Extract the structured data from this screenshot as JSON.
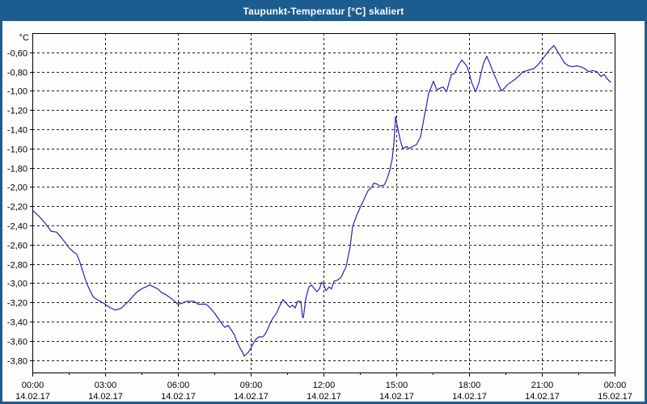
{
  "window": {
    "title": "Taupunkt-Temperatur [°C] skaliert"
  },
  "colors": {
    "titlebar": "#1d5c8f",
    "frame_border": "#1d5c8f",
    "background": "#fdfefb",
    "grid": "#1c1c1c",
    "axis": "#000000",
    "line": "#2323c4",
    "label_text": "#000000",
    "title_text": "#ffffff"
  },
  "chart_data": {
    "type": "line",
    "title": "Taupunkt-Temperatur [°C] skaliert",
    "ylabel": "°C",
    "xlabel": "",
    "grid": "dashed",
    "legend": "none",
    "ylim": [
      -3.93,
      -0.4
    ],
    "xlim_hours": [
      0,
      24
    ],
    "minor_tick_every_hours": 1.5,
    "y_ticks": [
      -0.6,
      -0.8,
      -1.0,
      -1.2,
      -1.4,
      -1.6,
      -1.8,
      -2.0,
      -2.2,
      -2.4,
      -2.6,
      -2.8,
      -3.0,
      -3.2,
      -3.4,
      -3.6,
      -3.8
    ],
    "y_tick_labels": [
      "-0,60",
      "-0,80",
      "-1,00",
      "-1,20",
      "-1,40",
      "-1,60",
      "-1,80",
      "-2,00",
      "-2,20",
      "-2,40",
      "-2,60",
      "-2,80",
      "-3,00",
      "-3,20",
      "-3,40",
      "-3,60",
      "-3,80"
    ],
    "x_ticks": [
      {
        "hour": 0,
        "time": "00:00",
        "date": "14.02.17"
      },
      {
        "hour": 3,
        "time": "03:00",
        "date": "14.02.17"
      },
      {
        "hour": 6,
        "time": "06:00",
        "date": "14.02.17"
      },
      {
        "hour": 9,
        "time": "09:00",
        "date": "14.02.17"
      },
      {
        "hour": 12,
        "time": "12:00",
        "date": "14.02.17"
      },
      {
        "hour": 15,
        "time": "15:00",
        "date": "14.02.17"
      },
      {
        "hour": 18,
        "time": "18:00",
        "date": "14.02.17"
      },
      {
        "hour": 21,
        "time": "21:00",
        "date": "14.02.17"
      },
      {
        "hour": 24,
        "time": "00:00",
        "date": "15.02.17"
      }
    ],
    "series": [
      {
        "name": "Taupunkt-Temperatur",
        "points": [
          [
            0.0,
            -2.24
          ],
          [
            0.17,
            -2.28
          ],
          [
            0.33,
            -2.32
          ],
          [
            0.5,
            -2.37
          ],
          [
            0.6,
            -2.4
          ],
          [
            0.77,
            -2.46
          ],
          [
            1.0,
            -2.47
          ],
          [
            1.17,
            -2.52
          ],
          [
            1.33,
            -2.57
          ],
          [
            1.5,
            -2.63
          ],
          [
            1.67,
            -2.67
          ],
          [
            1.83,
            -2.7
          ],
          [
            1.93,
            -2.76
          ],
          [
            2.07,
            -2.87
          ],
          [
            2.17,
            -2.95
          ],
          [
            2.27,
            -3.02
          ],
          [
            2.4,
            -3.09
          ],
          [
            2.5,
            -3.14
          ],
          [
            2.6,
            -3.16
          ],
          [
            2.73,
            -3.18
          ],
          [
            2.87,
            -3.2
          ],
          [
            3.0,
            -3.22
          ],
          [
            3.17,
            -3.25
          ],
          [
            3.33,
            -3.27
          ],
          [
            3.4,
            -3.28
          ],
          [
            3.57,
            -3.27
          ],
          [
            3.67,
            -3.26
          ],
          [
            3.83,
            -3.22
          ],
          [
            4.0,
            -3.18
          ],
          [
            4.17,
            -3.13
          ],
          [
            4.33,
            -3.09
          ],
          [
            4.5,
            -3.06
          ],
          [
            4.67,
            -3.04
          ],
          [
            4.83,
            -3.02
          ],
          [
            5.0,
            -3.04
          ],
          [
            5.17,
            -3.06
          ],
          [
            5.33,
            -3.1
          ],
          [
            5.5,
            -3.12
          ],
          [
            5.67,
            -3.15
          ],
          [
            5.83,
            -3.18
          ],
          [
            6.0,
            -3.22
          ],
          [
            6.17,
            -3.21
          ],
          [
            6.33,
            -3.19
          ],
          [
            6.67,
            -3.19
          ],
          [
            6.83,
            -3.22
          ],
          [
            7.17,
            -3.22
          ],
          [
            7.33,
            -3.26
          ],
          [
            7.5,
            -3.31
          ],
          [
            7.67,
            -3.37
          ],
          [
            7.83,
            -3.43
          ],
          [
            7.93,
            -3.46
          ],
          [
            8.07,
            -3.44
          ],
          [
            8.23,
            -3.5
          ],
          [
            8.33,
            -3.54
          ],
          [
            8.43,
            -3.61
          ],
          [
            8.57,
            -3.68
          ],
          [
            8.67,
            -3.72
          ],
          [
            8.73,
            -3.76
          ],
          [
            8.9,
            -3.72
          ],
          [
            9.0,
            -3.68
          ],
          [
            9.1,
            -3.63
          ],
          [
            9.23,
            -3.58
          ],
          [
            9.33,
            -3.56
          ],
          [
            9.5,
            -3.56
          ],
          [
            9.6,
            -3.53
          ],
          [
            9.73,
            -3.46
          ],
          [
            9.83,
            -3.4
          ],
          [
            9.93,
            -3.36
          ],
          [
            10.07,
            -3.31
          ],
          [
            10.17,
            -3.25
          ],
          [
            10.33,
            -3.17
          ],
          [
            10.5,
            -3.22
          ],
          [
            10.6,
            -3.25
          ],
          [
            10.73,
            -3.23
          ],
          [
            10.83,
            -3.26
          ],
          [
            10.93,
            -3.19
          ],
          [
            11.07,
            -3.19
          ],
          [
            11.13,
            -3.35
          ],
          [
            11.17,
            -3.36
          ],
          [
            11.27,
            -3.16
          ],
          [
            11.4,
            -3.04
          ],
          [
            11.5,
            -3.02
          ],
          [
            11.6,
            -3.05
          ],
          [
            11.73,
            -3.09
          ],
          [
            11.83,
            -3.06
          ],
          [
            11.93,
            -2.99
          ],
          [
            12.0,
            -3.01
          ],
          [
            12.1,
            -3.08
          ],
          [
            12.23,
            -3.04
          ],
          [
            12.33,
            -3.06
          ],
          [
            12.43,
            -2.98
          ],
          [
            12.57,
            -2.97
          ],
          [
            12.73,
            -2.94
          ],
          [
            12.83,
            -2.88
          ],
          [
            12.93,
            -2.83
          ],
          [
            13.1,
            -2.62
          ],
          [
            13.2,
            -2.41
          ],
          [
            13.33,
            -2.32
          ],
          [
            13.5,
            -2.22
          ],
          [
            13.67,
            -2.13
          ],
          [
            13.83,
            -2.04
          ],
          [
            14.0,
            -2.0
          ],
          [
            14.07,
            -1.96
          ],
          [
            14.2,
            -1.97
          ],
          [
            14.33,
            -1.99
          ],
          [
            14.5,
            -1.98
          ],
          [
            14.6,
            -1.93
          ],
          [
            14.73,
            -1.83
          ],
          [
            14.83,
            -1.71
          ],
          [
            14.9,
            -1.55
          ],
          [
            14.97,
            -1.27
          ],
          [
            15.07,
            -1.4
          ],
          [
            15.17,
            -1.52
          ],
          [
            15.27,
            -1.6
          ],
          [
            15.43,
            -1.58
          ],
          [
            15.53,
            -1.6
          ],
          [
            15.67,
            -1.58
          ],
          [
            15.83,
            -1.56
          ],
          [
            16.0,
            -1.48
          ],
          [
            16.13,
            -1.3
          ],
          [
            16.23,
            -1.17
          ],
          [
            16.33,
            -1.03
          ],
          [
            16.53,
            -0.9
          ],
          [
            16.67,
            -0.99
          ],
          [
            16.83,
            -0.97
          ],
          [
            16.93,
            -0.96
          ],
          [
            17.07,
            -1.01
          ],
          [
            17.17,
            -0.92
          ],
          [
            17.27,
            -0.83
          ],
          [
            17.4,
            -0.82
          ],
          [
            17.57,
            -0.73
          ],
          [
            17.7,
            -0.68
          ],
          [
            17.9,
            -0.74
          ],
          [
            18.0,
            -0.81
          ],
          [
            18.1,
            -0.91
          ],
          [
            18.27,
            -1.01
          ],
          [
            18.4,
            -0.92
          ],
          [
            18.5,
            -0.81
          ],
          [
            18.6,
            -0.71
          ],
          [
            18.73,
            -0.64
          ],
          [
            18.83,
            -0.7
          ],
          [
            19.0,
            -0.81
          ],
          [
            19.17,
            -0.91
          ],
          [
            19.33,
            -1.0
          ],
          [
            19.47,
            -0.97
          ],
          [
            19.57,
            -0.94
          ],
          [
            19.73,
            -0.91
          ],
          [
            19.9,
            -0.88
          ],
          [
            20.07,
            -0.84
          ],
          [
            20.23,
            -0.8
          ],
          [
            20.4,
            -0.79
          ],
          [
            20.5,
            -0.78
          ],
          [
            20.67,
            -0.77
          ],
          [
            20.83,
            -0.73
          ],
          [
            21.0,
            -0.68
          ],
          [
            21.17,
            -0.62
          ],
          [
            21.33,
            -0.57
          ],
          [
            21.5,
            -0.53
          ],
          [
            21.67,
            -0.6
          ],
          [
            21.77,
            -0.64
          ],
          [
            21.93,
            -0.71
          ],
          [
            22.1,
            -0.74
          ],
          [
            22.27,
            -0.75
          ],
          [
            22.43,
            -0.74
          ],
          [
            22.6,
            -0.75
          ],
          [
            22.77,
            -0.77
          ],
          [
            22.93,
            -0.8
          ],
          [
            23.1,
            -0.79
          ],
          [
            23.27,
            -0.8
          ],
          [
            23.43,
            -0.85
          ],
          [
            23.57,
            -0.83
          ],
          [
            23.67,
            -0.87
          ],
          [
            23.83,
            -0.91
          ]
        ]
      }
    ]
  }
}
